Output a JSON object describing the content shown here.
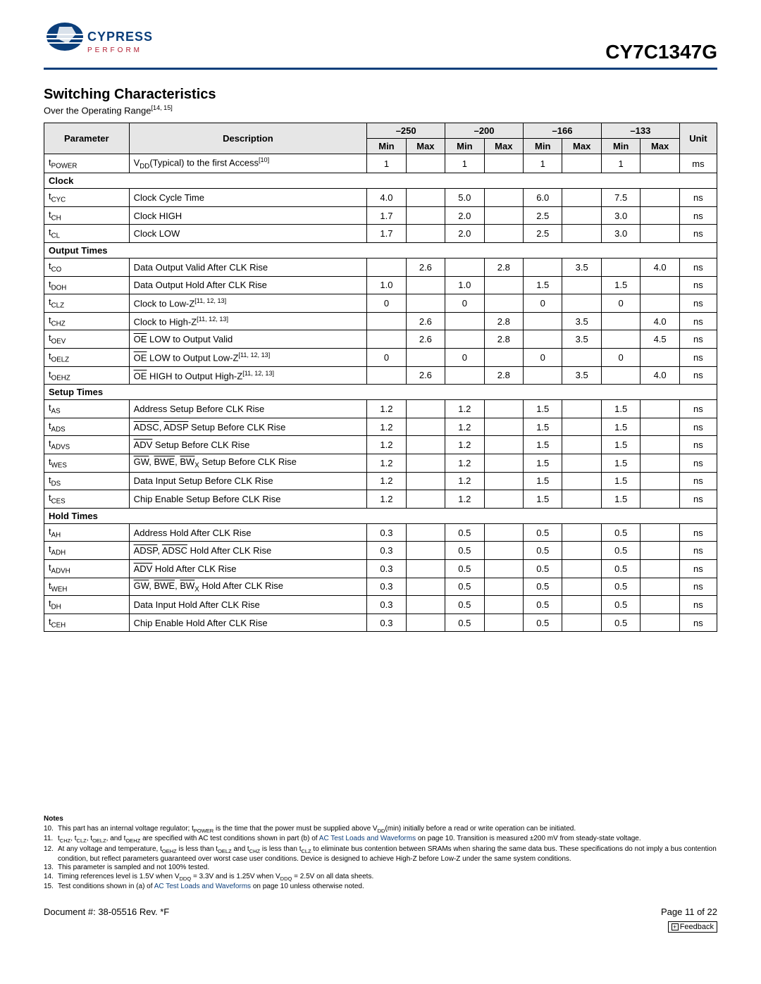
{
  "header": {
    "brand_top": "CYPRESS",
    "brand_bottom": "P E R F O R M",
    "part_number": "CY7C1347G",
    "rule_color": "#0b3e7a"
  },
  "section": {
    "title": "Switching Characteristics",
    "subtitle_prefix": "Over the Operating Range",
    "subtitle_refs": "[14, 15]"
  },
  "table": {
    "col_param": "Parameter",
    "col_desc": "Description",
    "speed_grades": [
      "–250",
      "–200",
      "–166",
      "–133"
    ],
    "col_min": "Min",
    "col_max": "Max",
    "col_unit": "Unit"
  },
  "rows": {
    "tpower": {
      "param_html": "t<sub>POWER</sub>",
      "desc_html": "V<sub>DD</sub>(Typical) to the first Access<sup>[10]</sup>",
      "v": [
        "1",
        "",
        "1",
        "",
        "1",
        "",
        "1",
        ""
      ],
      "unit": "ms"
    },
    "sec_clock": "Clock",
    "tcyc": {
      "param_html": "t<sub>CYC</sub>",
      "desc_html": "Clock Cycle Time",
      "v": [
        "4.0",
        "",
        "5.0",
        "",
        "6.0",
        "",
        "7.5",
        ""
      ],
      "unit": "ns"
    },
    "tch": {
      "param_html": "t<sub>CH</sub>",
      "desc_html": "Clock HIGH",
      "v": [
        "1.7",
        "",
        "2.0",
        "",
        "2.5",
        "",
        "3.0",
        ""
      ],
      "unit": "ns"
    },
    "tcl": {
      "param_html": "t<sub>CL</sub>",
      "desc_html": "Clock LOW",
      "v": [
        "1.7",
        "",
        "2.0",
        "",
        "2.5",
        "",
        "3.0",
        ""
      ],
      "unit": "ns"
    },
    "sec_output": "Output Times",
    "tco": {
      "param_html": "t<sub>CO</sub>",
      "desc_html": "Data Output Valid After CLK Rise",
      "v": [
        "",
        "2.6",
        "",
        "2.8",
        "",
        "3.5",
        "",
        "4.0"
      ],
      "unit": "ns"
    },
    "tdoh": {
      "param_html": "t<sub>DOH</sub>",
      "desc_html": "Data Output Hold After CLK Rise",
      "v": [
        "1.0",
        "",
        "1.0",
        "",
        "1.5",
        "",
        "1.5",
        ""
      ],
      "unit": "ns"
    },
    "tclz": {
      "param_html": "t<sub>CLZ</sub>",
      "desc_html": "Clock to Low-Z<sup>[11, 12, 13]</sup>",
      "v": [
        "0",
        "",
        "0",
        "",
        "0",
        "",
        "0",
        ""
      ],
      "unit": "ns"
    },
    "tchz": {
      "param_html": "t<sub>CHZ</sub>",
      "desc_html": "Clock to High-Z<sup>[11, 12, 13]</sup>",
      "v": [
        "",
        "2.6",
        "",
        "2.8",
        "",
        "3.5",
        "",
        "4.0"
      ],
      "unit": "ns"
    },
    "toev": {
      "param_html": "t<sub>OEV</sub>",
      "desc_html": "<span class=\"overline\">OE</span> LOW to Output Valid",
      "v": [
        "",
        "2.6",
        "",
        "2.8",
        "",
        "3.5",
        "",
        "4.5"
      ],
      "unit": "ns"
    },
    "toelz": {
      "param_html": "t<sub>OELZ</sub>",
      "desc_html": "<span class=\"overline\">OE</span> LOW to Output Low-Z<sup>[11, 12, 13]</sup>",
      "v": [
        "0",
        "",
        "0",
        "",
        "0",
        "",
        "0",
        ""
      ],
      "unit": "ns"
    },
    "toehz": {
      "param_html": "t<sub>OEHZ</sub>",
      "desc_html": "<span class=\"overline\">OE</span> HIGH to Output High-Z<sup>[11, 12, 13]</sup>",
      "v": [
        "",
        "2.6",
        "",
        "2.8",
        "",
        "3.5",
        "",
        "4.0"
      ],
      "unit": "ns"
    },
    "sec_setup": "Setup Times",
    "tas": {
      "param_html": "t<sub>AS</sub>",
      "desc_html": "Address Setup Before CLK Rise",
      "v": [
        "1.2",
        "",
        "1.2",
        "",
        "1.5",
        "",
        "1.5",
        ""
      ],
      "unit": "ns"
    },
    "tads": {
      "param_html": "t<sub>ADS</sub>",
      "desc_html": "<span class=\"overline\">ADSC</span>, <span class=\"overline\">ADSP</span> Setup Before CLK Rise",
      "v": [
        "1.2",
        "",
        "1.2",
        "",
        "1.5",
        "",
        "1.5",
        ""
      ],
      "unit": "ns"
    },
    "tadvs": {
      "param_html": "t<sub>ADVS</sub>",
      "desc_html": "<span class=\"overline\">ADV</span> Setup Before CLK Rise",
      "v": [
        "1.2",
        "",
        "1.2",
        "",
        "1.5",
        "",
        "1.5",
        ""
      ],
      "unit": "ns"
    },
    "twes": {
      "param_html": "t<sub>WES</sub>",
      "desc_html": "<span class=\"overline\">GW</span>, <span class=\"overline\">BWE</span>, <span class=\"overline\">BW</span><sub>X</sub> Setup Before CLK Rise",
      "v": [
        "1.2",
        "",
        "1.2",
        "",
        "1.5",
        "",
        "1.5",
        ""
      ],
      "unit": "ns"
    },
    "tds": {
      "param_html": "t<sub>DS</sub>",
      "desc_html": "Data Input Setup Before CLK Rise",
      "v": [
        "1.2",
        "",
        "1.2",
        "",
        "1.5",
        "",
        "1.5",
        ""
      ],
      "unit": "ns"
    },
    "tces": {
      "param_html": "t<sub>CES</sub>",
      "desc_html": "Chip Enable Setup Before CLK Rise",
      "v": [
        "1.2",
        "",
        "1.2",
        "",
        "1.5",
        "",
        "1.5",
        ""
      ],
      "unit": "ns"
    },
    "sec_hold": "Hold Times",
    "tah": {
      "param_html": "t<sub>AH</sub>",
      "desc_html": "Address Hold After CLK Rise",
      "v": [
        "0.3",
        "",
        "0.5",
        "",
        "0.5",
        "",
        "0.5",
        ""
      ],
      "unit": "ns"
    },
    "tadh": {
      "param_html": "t<sub>ADH</sub>",
      "desc_html": "<span class=\"overline\">ADSP</span>, <span class=\"overline\">ADSC</span> Hold After CLK Rise",
      "v": [
        "0.3",
        "",
        "0.5",
        "",
        "0.5",
        "",
        "0.5",
        ""
      ],
      "unit": "ns"
    },
    "tadvh": {
      "param_html": "t<sub>ADVH</sub>",
      "desc_html": "<span class=\"overline\">ADV</span> Hold After CLK Rise",
      "v": [
        "0.3",
        "",
        "0.5",
        "",
        "0.5",
        "",
        "0.5",
        ""
      ],
      "unit": "ns"
    },
    "tweh": {
      "param_html": "t<sub>WEH</sub>",
      "desc_html": "<span class=\"overline\">GW</span>, <span class=\"overline\">BWE</span>, <span class=\"overline\">BW</span><sub>X</sub> Hold After CLK Rise",
      "v": [
        "0.3",
        "",
        "0.5",
        "",
        "0.5",
        "",
        "0.5",
        ""
      ],
      "unit": "ns"
    },
    "tdh": {
      "param_html": "t<sub>DH</sub>",
      "desc_html": "Data Input Hold After CLK Rise",
      "v": [
        "0.3",
        "",
        "0.5",
        "",
        "0.5",
        "",
        "0.5",
        ""
      ],
      "unit": "ns"
    },
    "tceh": {
      "param_html": "t<sub>CEH</sub>",
      "desc_html": "Chip Enable Hold After CLK Rise",
      "v": [
        "0.3",
        "",
        "0.5",
        "",
        "0.5",
        "",
        "0.5",
        ""
      ],
      "unit": "ns"
    }
  },
  "notes": {
    "title": "Notes",
    "items": [
      {
        "n": "10.",
        "html": "This part has an internal voltage regulator; t<sub>POWER</sub> is the time that the power must be supplied above V<sub>DD</sub>(min) initially before a read or write operation can be initiated."
      },
      {
        "n": "11.",
        "html": "t<sub>CHZ</sub>, t<sub>CLZ</sub>, t<sub>OELZ</sub>, and t<sub>OEHZ</sub> are specified with AC test conditions shown in part (b) of <a class=\"ref\" href=\"#\">AC Test Loads and Waveforms</a> on page 10. Transition is measured ±200 mV from steady-state voltage."
      },
      {
        "n": "12.",
        "html": "At any voltage and temperature, t<sub>OEHZ</sub> is less than t<sub>OELZ</sub> and t<sub>CHZ</sub> is less than t<sub>CLZ</sub> to eliminate bus contention between SRAMs when sharing the same data bus. These specifications do not imply a bus contention condition, but reflect parameters guaranteed over worst case user conditions. Device is designed to achieve High-Z before Low-Z under the same system conditions."
      },
      {
        "n": "13.",
        "html": "This parameter is sampled and not 100% tested."
      },
      {
        "n": "14.",
        "html": "Timing references level is 1.5V when V<sub>DDQ</sub> = 3.3V and is 1.25V when V<sub>DDQ</sub> = 2.5V on all data sheets."
      },
      {
        "n": "15.",
        "html": "Test conditions shown in (a) of <a class=\"ref\" href=\"#\">AC Test Loads and Waveforms</a> on page 10 unless otherwise noted."
      }
    ]
  },
  "footer": {
    "doc": "Document #: 38-05516 Rev. *F",
    "page": "Page 11 of 22",
    "feedback": "Feedback"
  },
  "style": {
    "header_bg": "#e6e6e6",
    "border_color": "#000000",
    "link_color": "#0b3e7a",
    "logo_blue": "#0b3e7a",
    "logo_red": "#b01a2e"
  }
}
